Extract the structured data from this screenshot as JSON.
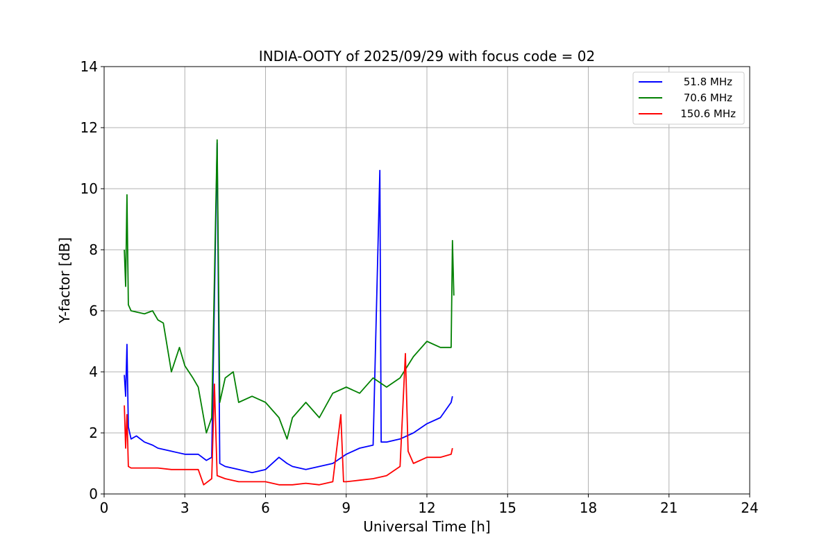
{
  "chart_data": {
    "type": "line",
    "title": "INDIA-OOTY of 2025/09/29 with focus code = 02",
    "xlabel": "Universal Time [h]",
    "ylabel": "Y-factor [dB]",
    "xlim": [
      0,
      24
    ],
    "ylim": [
      0,
      14
    ],
    "xticks": [
      0,
      3,
      6,
      9,
      12,
      15,
      18,
      21,
      24
    ],
    "yticks": [
      0,
      2,
      4,
      6,
      8,
      10,
      12,
      14
    ],
    "grid": true,
    "legend_position": "top-right",
    "series": [
      {
        "name": "51.8 MHz",
        "color": "#0000ff",
        "points": [
          [
            0.75,
            3.9
          ],
          [
            0.8,
            3.2
          ],
          [
            0.85,
            4.9
          ],
          [
            0.9,
            2.2
          ],
          [
            1.0,
            1.8
          ],
          [
            1.2,
            1.9
          ],
          [
            1.5,
            1.7
          ],
          [
            1.8,
            1.6
          ],
          [
            2.0,
            1.5
          ],
          [
            2.5,
            1.4
          ],
          [
            3.0,
            1.3
          ],
          [
            3.5,
            1.3
          ],
          [
            3.8,
            1.1
          ],
          [
            4.0,
            1.2
          ],
          [
            4.2,
            11.5
          ],
          [
            4.3,
            1.0
          ],
          [
            4.5,
            0.9
          ],
          [
            5.0,
            0.8
          ],
          [
            5.5,
            0.7
          ],
          [
            6.0,
            0.8
          ],
          [
            6.5,
            1.2
          ],
          [
            6.8,
            1.0
          ],
          [
            7.0,
            0.9
          ],
          [
            7.5,
            0.8
          ],
          [
            8.0,
            0.9
          ],
          [
            8.5,
            1.0
          ],
          [
            9.0,
            1.3
          ],
          [
            9.5,
            1.5
          ],
          [
            10.0,
            1.6
          ],
          [
            10.25,
            10.6
          ],
          [
            10.3,
            1.7
          ],
          [
            10.5,
            1.7
          ],
          [
            11.0,
            1.8
          ],
          [
            11.5,
            2.0
          ],
          [
            12.0,
            2.3
          ],
          [
            12.5,
            2.5
          ],
          [
            12.9,
            3.0
          ],
          [
            12.95,
            3.2
          ]
        ]
      },
      {
        "name": "70.6 MHz",
        "color": "#008000",
        "points": [
          [
            0.75,
            8.0
          ],
          [
            0.8,
            6.8
          ],
          [
            0.85,
            9.8
          ],
          [
            0.9,
            6.2
          ],
          [
            1.0,
            6.0
          ],
          [
            1.5,
            5.9
          ],
          [
            1.8,
            6.0
          ],
          [
            2.0,
            5.7
          ],
          [
            2.2,
            5.6
          ],
          [
            2.5,
            4.0
          ],
          [
            2.8,
            4.8
          ],
          [
            3.0,
            4.2
          ],
          [
            3.3,
            3.8
          ],
          [
            3.5,
            3.5
          ],
          [
            3.8,
            2.0
          ],
          [
            4.0,
            2.5
          ],
          [
            4.2,
            11.6
          ],
          [
            4.3,
            3.0
          ],
          [
            4.5,
            3.8
          ],
          [
            4.8,
            4.0
          ],
          [
            5.0,
            3.0
          ],
          [
            5.5,
            3.2
          ],
          [
            6.0,
            3.0
          ],
          [
            6.5,
            2.5
          ],
          [
            6.8,
            1.8
          ],
          [
            7.0,
            2.5
          ],
          [
            7.5,
            3.0
          ],
          [
            8.0,
            2.5
          ],
          [
            8.5,
            3.3
          ],
          [
            9.0,
            3.5
          ],
          [
            9.5,
            3.3
          ],
          [
            10.0,
            3.8
          ],
          [
            10.5,
            3.5
          ],
          [
            11.0,
            3.8
          ],
          [
            11.5,
            4.5
          ],
          [
            12.0,
            5.0
          ],
          [
            12.5,
            4.8
          ],
          [
            12.9,
            4.8
          ],
          [
            12.95,
            8.3
          ],
          [
            13.0,
            6.5
          ]
        ]
      },
      {
        "name": "150.6 MHz",
        "color": "#ff0000",
        "points": [
          [
            0.75,
            2.9
          ],
          [
            0.8,
            1.5
          ],
          [
            0.85,
            2.6
          ],
          [
            0.9,
            0.9
          ],
          [
            1.0,
            0.85
          ],
          [
            1.5,
            0.85
          ],
          [
            2.0,
            0.85
          ],
          [
            2.5,
            0.8
          ],
          [
            3.0,
            0.8
          ],
          [
            3.5,
            0.8
          ],
          [
            3.7,
            0.3
          ],
          [
            4.0,
            0.5
          ],
          [
            4.1,
            3.6
          ],
          [
            4.2,
            0.6
          ],
          [
            4.5,
            0.5
          ],
          [
            5.0,
            0.4
          ],
          [
            5.5,
            0.4
          ],
          [
            6.0,
            0.4
          ],
          [
            6.5,
            0.3
          ],
          [
            7.0,
            0.3
          ],
          [
            7.5,
            0.35
          ],
          [
            8.0,
            0.3
          ],
          [
            8.5,
            0.4
          ],
          [
            8.8,
            2.6
          ],
          [
            8.9,
            0.4
          ],
          [
            9.0,
            0.4
          ],
          [
            9.5,
            0.45
          ],
          [
            10.0,
            0.5
          ],
          [
            10.5,
            0.6
          ],
          [
            11.0,
            0.9
          ],
          [
            11.2,
            4.6
          ],
          [
            11.3,
            1.4
          ],
          [
            11.5,
            1.0
          ],
          [
            12.0,
            1.2
          ],
          [
            12.5,
            1.2
          ],
          [
            12.9,
            1.3
          ],
          [
            12.95,
            1.5
          ]
        ]
      }
    ]
  }
}
